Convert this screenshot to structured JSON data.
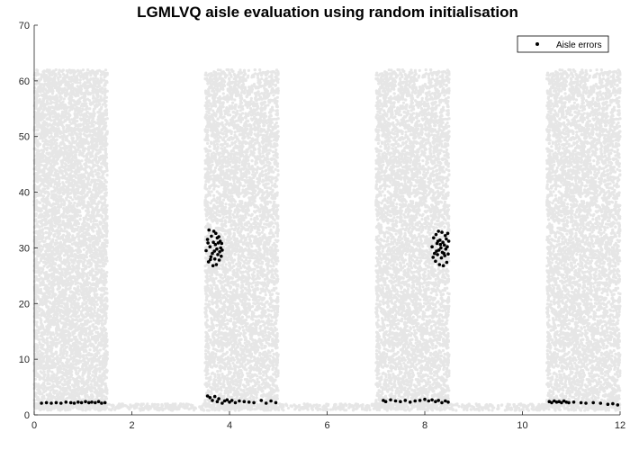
{
  "chart_data": {
    "type": "scatter",
    "title": "LGMLVQ aisle evaluation using random initialisation",
    "xlabel": "",
    "ylabel": "",
    "xlim": [
      0,
      12
    ],
    "ylim": [
      0,
      70
    ],
    "xticks": [
      "0",
      "2",
      "4",
      "6",
      "8",
      "10",
      "12"
    ],
    "yticks": [
      "0",
      "10",
      "20",
      "30",
      "40",
      "50",
      "60",
      "70"
    ],
    "grid": false,
    "legend_position": "top-right",
    "background_color": "#e6e6e6",
    "error_color": "#000000",
    "background_regions": [
      {
        "x": [
          0,
          1.5
        ],
        "y": [
          1,
          62
        ]
      },
      {
        "x": [
          3.5,
          5.0
        ],
        "y": [
          1,
          62
        ]
      },
      {
        "x": [
          7.0,
          8.5
        ],
        "y": [
          1,
          62
        ]
      },
      {
        "x": [
          10.5,
          12.0
        ],
        "y": [
          1,
          62
        ]
      },
      {
        "x": [
          0,
          12.0
        ],
        "y": [
          0.8,
          2.0
        ]
      }
    ],
    "series": [
      {
        "name": "Aisle errors",
        "points": [
          [
            0.15,
            2.1
          ],
          [
            0.25,
            2.2
          ],
          [
            0.35,
            2.1
          ],
          [
            0.45,
            2.2
          ],
          [
            0.55,
            2.1
          ],
          [
            0.65,
            2.3
          ],
          [
            0.75,
            2.2
          ],
          [
            0.82,
            2.1
          ],
          [
            0.9,
            2.3
          ],
          [
            0.97,
            2.2
          ],
          [
            1.05,
            2.4
          ],
          [
            1.12,
            2.2
          ],
          [
            1.18,
            2.3
          ],
          [
            1.25,
            2.2
          ],
          [
            1.32,
            2.4
          ],
          [
            1.38,
            2.1
          ],
          [
            1.45,
            2.2
          ],
          [
            3.55,
            3.4
          ],
          [
            3.6,
            3.1
          ],
          [
            3.65,
            2.6
          ],
          [
            3.7,
            3.3
          ],
          [
            3.75,
            2.4
          ],
          [
            3.78,
            2.9
          ],
          [
            3.85,
            2.1
          ],
          [
            3.9,
            2.5
          ],
          [
            3.95,
            2.7
          ],
          [
            4.0,
            2.3
          ],
          [
            4.05,
            2.6
          ],
          [
            4.12,
            2.2
          ],
          [
            4.2,
            2.5
          ],
          [
            4.3,
            2.4
          ],
          [
            4.4,
            2.3
          ],
          [
            4.5,
            2.2
          ],
          [
            4.65,
            2.6
          ],
          [
            4.75,
            2.1
          ],
          [
            4.85,
            2.5
          ],
          [
            4.95,
            2.2
          ],
          [
            3.52,
            29.5
          ],
          [
            3.55,
            31.5
          ],
          [
            3.57,
            27.5
          ],
          [
            3.58,
            33.2
          ],
          [
            3.6,
            30.2
          ],
          [
            3.62,
            28.4
          ],
          [
            3.63,
            32.1
          ],
          [
            3.65,
            29.0
          ],
          [
            3.66,
            26.8
          ],
          [
            3.67,
            31.0
          ],
          [
            3.68,
            33.0
          ],
          [
            3.7,
            28.0
          ],
          [
            3.71,
            30.6
          ],
          [
            3.72,
            32.6
          ],
          [
            3.73,
            27.0
          ],
          [
            3.74,
            29.8
          ],
          [
            3.75,
            31.8
          ],
          [
            3.76,
            28.8
          ],
          [
            3.77,
            30.9
          ],
          [
            3.78,
            32.0
          ],
          [
            3.79,
            27.8
          ],
          [
            3.8,
            29.3
          ],
          [
            3.81,
            31.2
          ],
          [
            3.82,
            30.0
          ],
          [
            3.83,
            28.5
          ],
          [
            3.84,
            30.8
          ],
          [
            3.85,
            29.6
          ],
          [
            3.56,
            30.9
          ],
          [
            3.61,
            27.9
          ],
          [
            3.69,
            29.4
          ],
          [
            7.15,
            2.6
          ],
          [
            7.2,
            2.4
          ],
          [
            7.3,
            2.7
          ],
          [
            7.4,
            2.5
          ],
          [
            7.5,
            2.4
          ],
          [
            7.6,
            2.6
          ],
          [
            7.7,
            2.3
          ],
          [
            7.8,
            2.5
          ],
          [
            7.9,
            2.6
          ],
          [
            8.0,
            2.8
          ],
          [
            8.08,
            2.5
          ],
          [
            8.15,
            2.7
          ],
          [
            8.22,
            2.4
          ],
          [
            8.28,
            2.6
          ],
          [
            8.35,
            2.2
          ],
          [
            8.42,
            2.5
          ],
          [
            8.48,
            2.3
          ],
          [
            8.15,
            30.2
          ],
          [
            8.17,
            28.3
          ],
          [
            8.18,
            31.8
          ],
          [
            8.2,
            29.0
          ],
          [
            8.22,
            27.6
          ],
          [
            8.23,
            32.4
          ],
          [
            8.25,
            30.8
          ],
          [
            8.26,
            28.8
          ],
          [
            8.28,
            33.0
          ],
          [
            8.29,
            29.6
          ],
          [
            8.3,
            27.0
          ],
          [
            8.31,
            31.4
          ],
          [
            8.33,
            30.0
          ],
          [
            8.34,
            28.2
          ],
          [
            8.35,
            32.8
          ],
          [
            8.36,
            29.2
          ],
          [
            8.37,
            31.0
          ],
          [
            8.38,
            26.8
          ],
          [
            8.4,
            30.5
          ],
          [
            8.41,
            28.6
          ],
          [
            8.42,
            32.2
          ],
          [
            8.43,
            29.8
          ],
          [
            8.44,
            31.6
          ],
          [
            8.45,
            27.4
          ],
          [
            8.46,
            30.2
          ],
          [
            8.47,
            32.6
          ],
          [
            8.48,
            28.9
          ],
          [
            8.49,
            31.2
          ],
          [
            8.24,
            29.4
          ],
          [
            8.32,
            30.6
          ],
          [
            8.39,
            29.0
          ],
          [
            8.27,
            31.2
          ],
          [
            10.55,
            2.4
          ],
          [
            10.6,
            2.2
          ],
          [
            10.65,
            2.5
          ],
          [
            10.7,
            2.3
          ],
          [
            10.75,
            2.4
          ],
          [
            10.8,
            2.2
          ],
          [
            10.85,
            2.5
          ],
          [
            10.9,
            2.3
          ],
          [
            10.95,
            2.2
          ],
          [
            11.05,
            2.3
          ],
          [
            11.2,
            2.2
          ],
          [
            11.3,
            2.1
          ],
          [
            11.45,
            2.2
          ],
          [
            11.6,
            2.1
          ],
          [
            11.75,
            1.9
          ],
          [
            11.85,
            2.0
          ],
          [
            11.95,
            1.8
          ]
        ]
      }
    ]
  }
}
